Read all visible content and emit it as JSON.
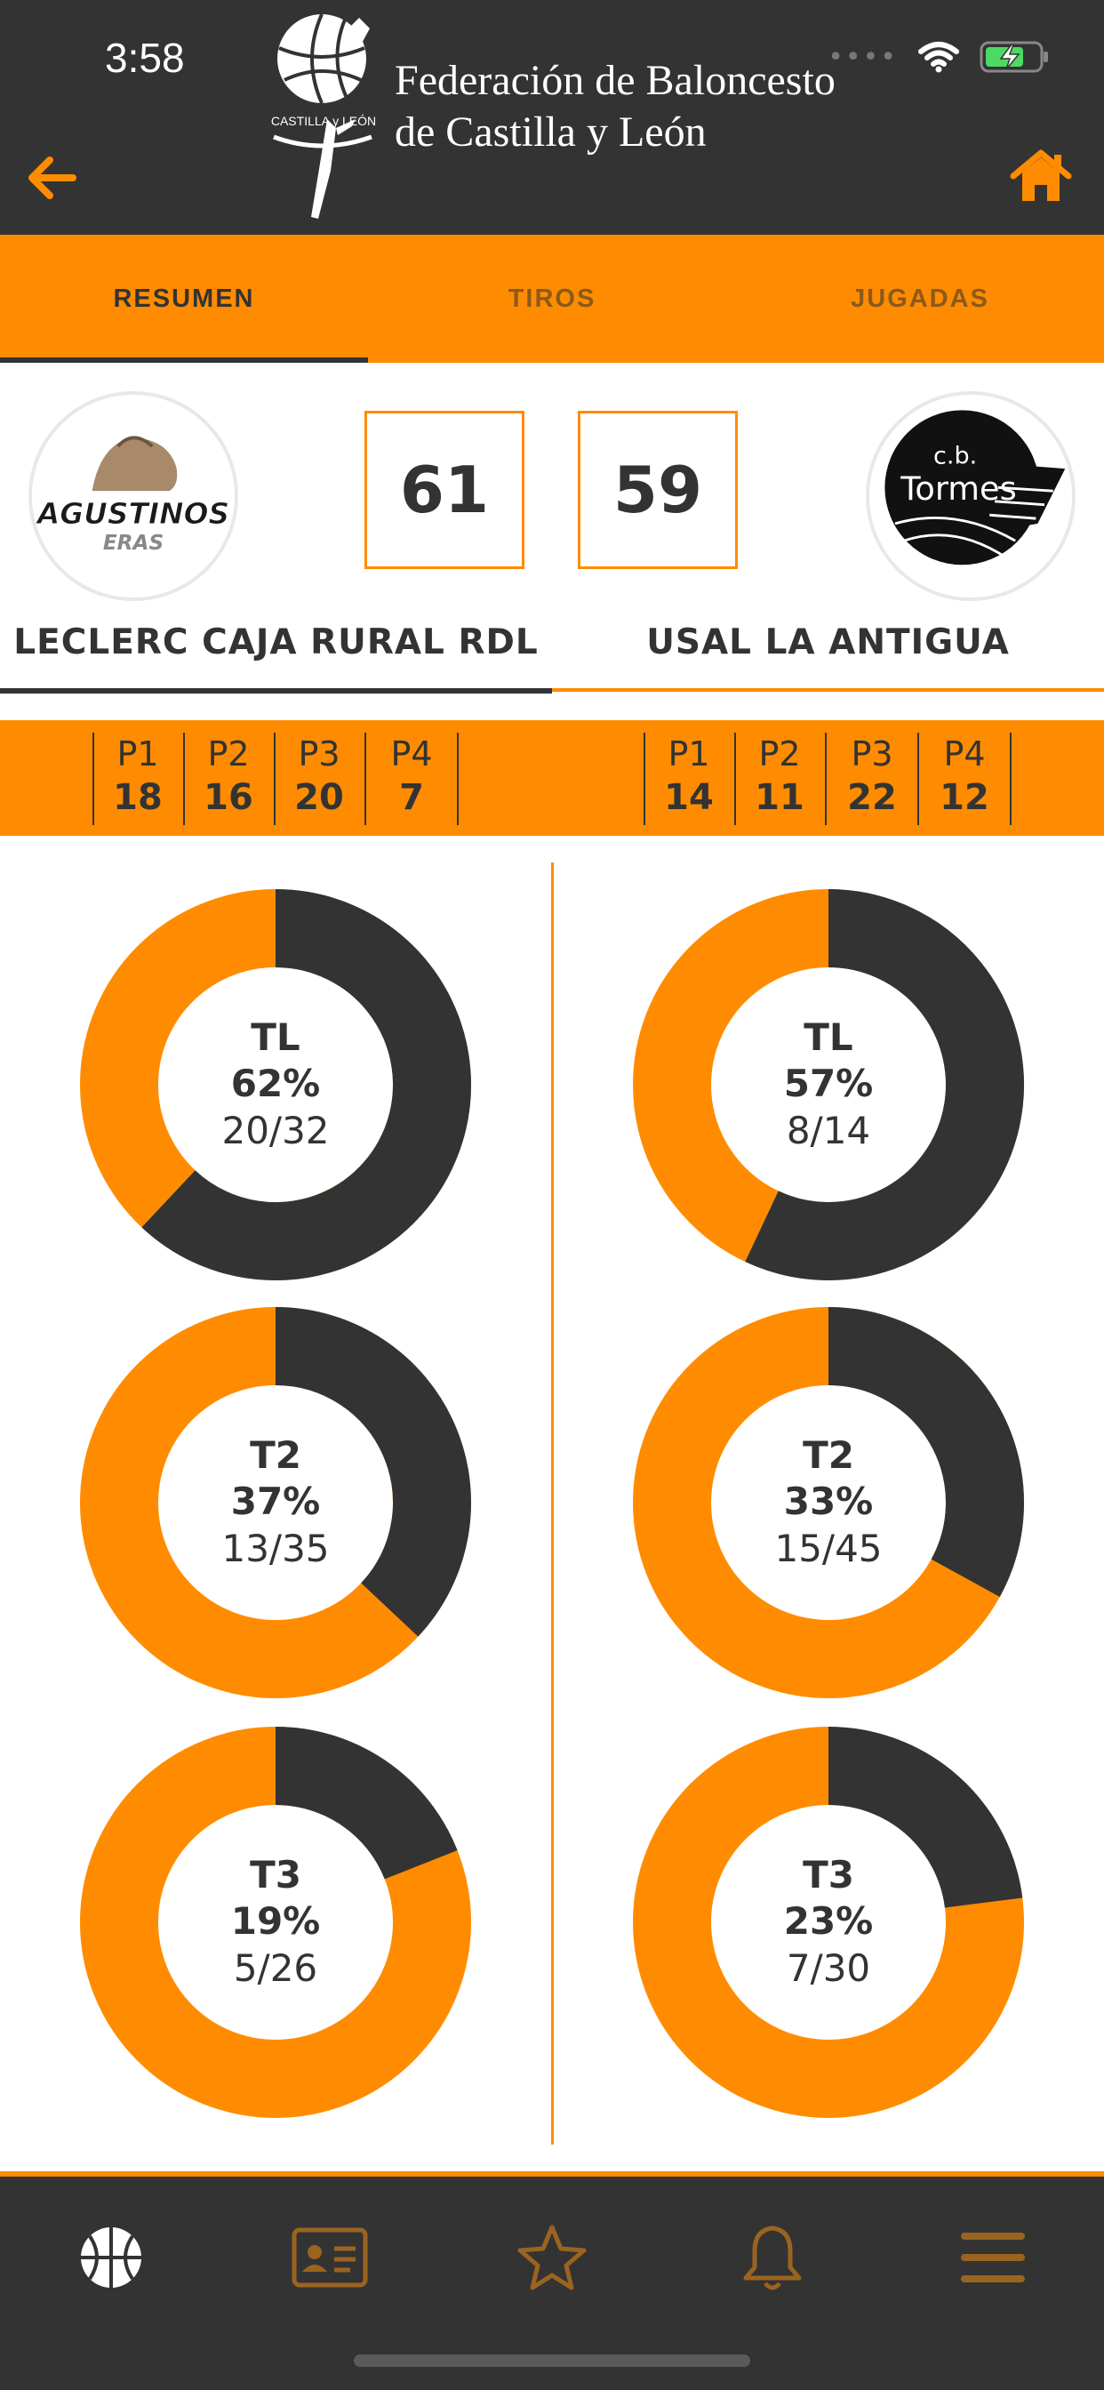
{
  "status": {
    "time": "3:58"
  },
  "header": {
    "logo_text": "CASTILLA y LEÓN",
    "title_line1": "Federación de Baloncesto",
    "title_line2": "de Castilla y León"
  },
  "tabs": [
    {
      "label": "RESUMEN",
      "active": true
    },
    {
      "label": "TIROS",
      "active": false
    },
    {
      "label": "JUGADAS",
      "active": false
    }
  ],
  "home": {
    "name": "LECLERC CAJA RURAL RDL",
    "score": "61",
    "logo_text_main": "AGUSTINOS",
    "logo_text_sub": "ERAS",
    "periods": [
      {
        "label": "P1",
        "value": "18"
      },
      {
        "label": "P2",
        "value": "16"
      },
      {
        "label": "P3",
        "value": "20"
      },
      {
        "label": "P4",
        "value": "7"
      }
    ],
    "stats": [
      {
        "label": "TL",
        "pct": "62%",
        "ratio": "20/32",
        "fraction": 0.62
      },
      {
        "label": "T2",
        "pct": "37%",
        "ratio": "13/35",
        "fraction": 0.37
      },
      {
        "label": "T3",
        "pct": "19%",
        "ratio": "5/26",
        "fraction": 0.19
      }
    ]
  },
  "away": {
    "name": "USAL LA ANTIGUA",
    "score": "59",
    "logo_text_top": "c.b.",
    "logo_text_main": "Tormes",
    "periods": [
      {
        "label": "P1",
        "value": "14"
      },
      {
        "label": "P2",
        "value": "11"
      },
      {
        "label": "P3",
        "value": "22"
      },
      {
        "label": "P4",
        "value": "12"
      }
    ],
    "stats": [
      {
        "label": "TL",
        "pct": "57%",
        "ratio": "8/14",
        "fraction": 0.57
      },
      {
        "label": "T2",
        "pct": "33%",
        "ratio": "15/45",
        "fraction": 0.33
      },
      {
        "label": "T3",
        "pct": "23%",
        "ratio": "7/30",
        "fraction": 0.23
      }
    ]
  },
  "colors": {
    "accent": "#ff8c00",
    "dark": "#333333"
  },
  "nav": [
    {
      "icon": "basketball-icon",
      "active": true
    },
    {
      "icon": "id-card-icon",
      "active": false
    },
    {
      "icon": "star-icon",
      "active": false
    },
    {
      "icon": "bell-icon",
      "active": false
    },
    {
      "icon": "menu-icon",
      "active": false
    }
  ]
}
